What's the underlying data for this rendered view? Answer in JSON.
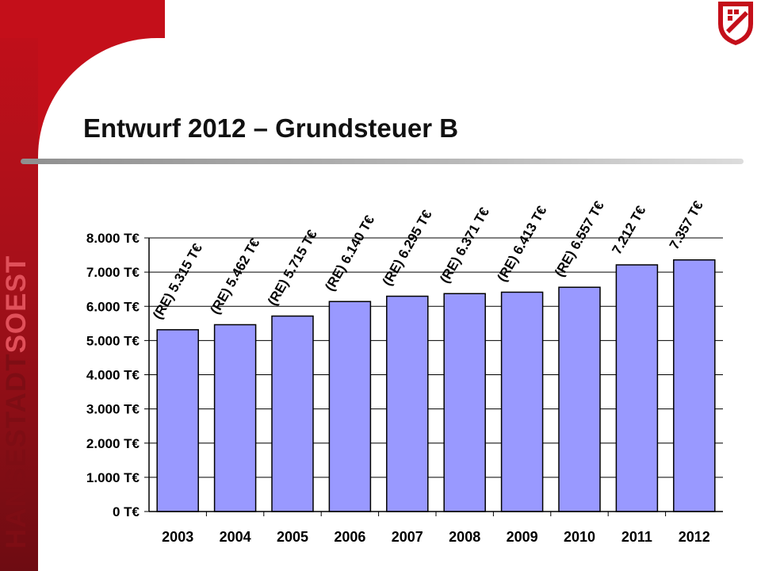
{
  "branding": {
    "sidebar_text_part1": "HANSESTADT",
    "sidebar_text_part2": "SOEST",
    "colors": {
      "primary_red": "#c40f1a",
      "dark_red": "#6e0c12"
    }
  },
  "slide": {
    "title": "Entwurf 2012 – Grundsteuer B"
  },
  "chart_data": {
    "type": "bar",
    "categories": [
      "2003",
      "2004",
      "2005",
      "2006",
      "2007",
      "2008",
      "2009",
      "2010",
      "2011",
      "2012"
    ],
    "values": [
      5315,
      5462,
      5715,
      6140,
      6295,
      6371,
      6413,
      6557,
      7212,
      7357
    ],
    "data_labels": [
      "(RE) 5.315 T€",
      "(RE) 5.462 T€",
      "(RE) 5.715 T€",
      "(RE) 6.140 T€",
      "(RE) 6.295 T€",
      "(RE) 6.371 T€",
      "(RE) 6.413 T€",
      "(RE) 6.557 T€",
      "7.212 T€",
      "7.357 T€"
    ],
    "y_ticks": [
      0,
      1000,
      2000,
      3000,
      4000,
      5000,
      6000,
      7000,
      8000
    ],
    "y_tick_labels": [
      "0 T€",
      "1.000 T€",
      "2.000 T€",
      "3.000 T€",
      "4.000 T€",
      "5.000 T€",
      "6.000 T€",
      "7.000 T€",
      "8.000 T€"
    ],
    "ylim": [
      0,
      8000
    ],
    "grid": true,
    "bar_color": "#9999ff",
    "title": "",
    "xlabel": "",
    "ylabel": ""
  }
}
